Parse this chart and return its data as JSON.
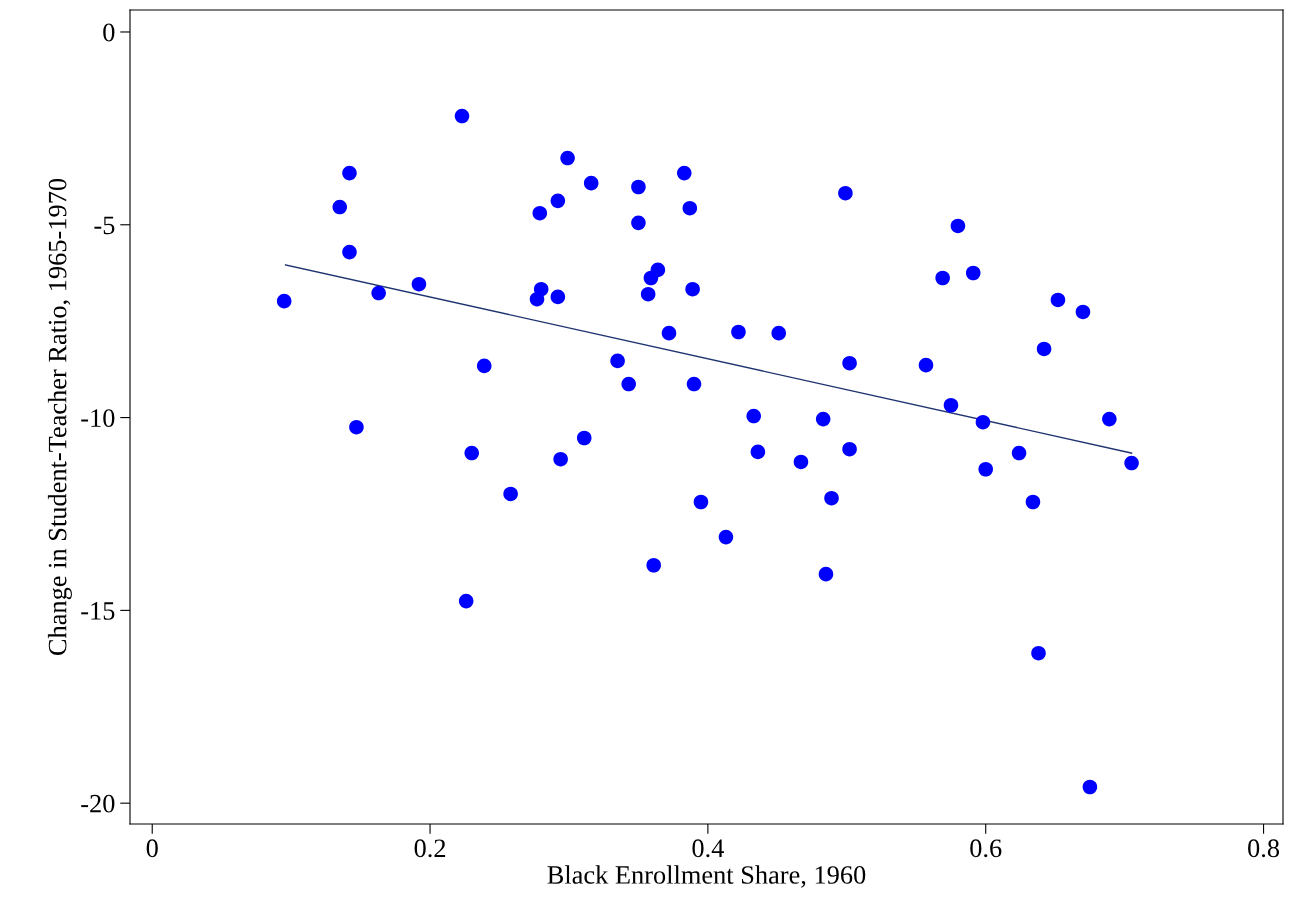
{
  "chart_data": {
    "type": "scatter",
    "xlabel": "Black Enrollment Share, 1960",
    "ylabel": "Change in Student-Teacher Ratio, 1965-1970",
    "xlim": [
      -0.016,
      0.814
    ],
    "ylim": [
      -20.54,
      0.57
    ],
    "xticks": [
      0,
      0.2,
      0.4,
      0.6,
      0.8
    ],
    "yticks": [
      0,
      -5,
      -10,
      -15,
      -20
    ],
    "grid": false,
    "legend": false,
    "series": [
      {
        "marker": "circle",
        "color": "#0000ff",
        "x": [
          0.095,
          0.135,
          0.142,
          0.142,
          0.147,
          0.163,
          0.192,
          0.223,
          0.226,
          0.23,
          0.239,
          0.258,
          0.277,
          0.279,
          0.28,
          0.292,
          0.292,
          0.294,
          0.299,
          0.311,
          0.316,
          0.335,
          0.343,
          0.35,
          0.35,
          0.357,
          0.359,
          0.361,
          0.364,
          0.372,
          0.383,
          0.387,
          0.389,
          0.39,
          0.395,
          0.413,
          0.422,
          0.433,
          0.436,
          0.451,
          0.467,
          0.483,
          0.485,
          0.489,
          0.499,
          0.502,
          0.502,
          0.557,
          0.569,
          0.575,
          0.58,
          0.591,
          0.598,
          0.6,
          0.624,
          0.634,
          0.638,
          0.642,
          0.652,
          0.67,
          0.675,
          0.689,
          0.705
        ],
        "values": [
          -6.98,
          -4.54,
          -3.66,
          -5.71,
          -10.25,
          -6.77,
          -6.54,
          -2.18,
          -14.76,
          -10.92,
          -8.66,
          -11.98,
          -6.93,
          -4.7,
          -6.67,
          -4.38,
          -6.87,
          -11.08,
          -3.27,
          -10.53,
          -3.92,
          -8.53,
          -9.13,
          -4.02,
          -4.95,
          -6.8,
          -6.38,
          -13.83,
          -6.17,
          -7.81,
          -3.66,
          -4.57,
          -6.67,
          -9.13,
          -12.19,
          -13.1,
          -7.78,
          -9.96,
          -10.89,
          -7.81,
          -11.15,
          -10.04,
          -14.06,
          -12.09,
          -4.18,
          -8.59,
          -10.82,
          -8.64,
          -6.38,
          -9.68,
          -5.03,
          -6.25,
          -10.12,
          -11.34,
          -10.92,
          -12.19,
          -16.11,
          -8.22,
          -6.95,
          -7.26,
          -19.58,
          -10.04,
          -11.18
        ]
      },
      {
        "type": "line",
        "marker": "none",
        "color": "#1f3370",
        "x": [
          0.096,
          0.705
        ],
        "values": [
          -6.04,
          -10.92
        ]
      }
    ]
  }
}
